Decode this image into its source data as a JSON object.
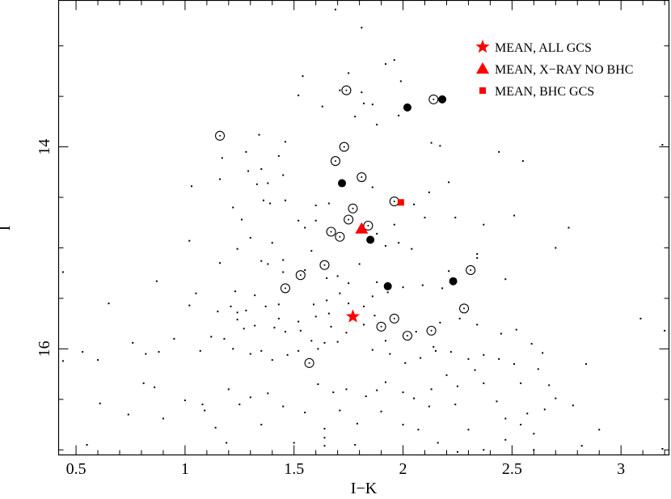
{
  "chart_data": {
    "type": "scatter",
    "xlabel": "I−K",
    "ylabel": "I",
    "xlim": [
      0.42,
      3.22
    ],
    "ylim": [
      17.05,
      12.55
    ],
    "y_inverted": true,
    "grid": false,
    "legend_position": "top-right",
    "x_ticks": [
      0.5,
      1,
      1.5,
      2,
      2.5,
      3
    ],
    "x_tick_labels": [
      "0.5",
      "1",
      "1.5",
      "2",
      "2.5",
      "3"
    ],
    "y_ticks": [
      14,
      16
    ],
    "y_tick_labels": [
      "14",
      "16"
    ],
    "colors": {
      "mean": "#ff0000",
      "points": "#000000"
    },
    "legend": [
      {
        "label": "MEAN, ALL GCS",
        "marker": "star"
      },
      {
        "label": "MEAN, X−RAY NO BHC",
        "marker": "triangle"
      },
      {
        "label": "MEAN, BHC GCS",
        "marker": "square"
      }
    ],
    "series": [
      {
        "name": "MEAN, ALL GCS",
        "marker": "star",
        "points": [
          [
            1.77,
            15.68
          ]
        ]
      },
      {
        "name": "MEAN, X−RAY NO BHC",
        "marker": "triangle",
        "points": [
          [
            1.81,
            14.81
          ]
        ]
      },
      {
        "name": "MEAN, BHC GCS",
        "marker": "square",
        "points": [
          [
            1.99,
            14.55
          ]
        ]
      },
      {
        "marker": "filled-circle",
        "points": [
          [
            2.02,
            13.61
          ],
          [
            2.18,
            13.53
          ],
          [
            1.72,
            14.36
          ],
          [
            1.85,
            14.92
          ],
          [
            1.93,
            15.38
          ],
          [
            2.23,
            15.33
          ]
        ]
      },
      {
        "marker": "circle-dot",
        "points": [
          [
            1.16,
            13.89
          ],
          [
            1.74,
            13.44
          ],
          [
            2.14,
            13.53
          ],
          [
            1.73,
            14.0
          ],
          [
            1.69,
            14.14
          ],
          [
            1.81,
            14.3
          ],
          [
            1.96,
            14.54
          ],
          [
            1.77,
            14.61
          ],
          [
            1.75,
            14.72
          ],
          [
            1.84,
            14.78
          ],
          [
            1.67,
            14.84
          ],
          [
            1.71,
            14.89
          ],
          [
            1.64,
            15.17
          ],
          [
            2.31,
            15.22
          ],
          [
            1.53,
            15.27
          ],
          [
            1.46,
            15.4
          ],
          [
            2.28,
            15.6
          ],
          [
            1.96,
            15.7
          ],
          [
            1.9,
            15.78
          ],
          [
            2.13,
            15.82
          ],
          [
            2.02,
            15.87
          ],
          [
            1.57,
            16.14
          ]
        ]
      },
      {
        "marker": "dot",
        "points": [
          [
            1.63,
            12.51
          ],
          [
            1.69,
            12.64
          ],
          [
            1.81,
            12.82
          ],
          [
            1.71,
            13.44
          ],
          [
            1.54,
            13.3
          ],
          [
            1.52,
            13.49
          ],
          [
            1.63,
            13.6
          ],
          [
            1.98,
            13.69
          ],
          [
            1.82,
            13.57
          ],
          [
            1.86,
            13.58
          ],
          [
            1.78,
            13.7
          ],
          [
            2.13,
            13.96
          ],
          [
            2.17,
            13.99
          ],
          [
            1.46,
            13.95
          ],
          [
            1.43,
            14.09
          ],
          [
            1.28,
            14.05
          ],
          [
            1.17,
            14.11
          ],
          [
            1.29,
            14.24
          ],
          [
            1.16,
            14.32
          ],
          [
            1.35,
            14.22
          ],
          [
            1.38,
            14.36
          ],
          [
            1.22,
            14.6
          ],
          [
            1.33,
            14.37
          ],
          [
            1.36,
            14.53
          ],
          [
            1.26,
            14.72
          ],
          [
            1.46,
            14.53
          ],
          [
            1.39,
            14.56
          ],
          [
            1.6,
            14.58
          ],
          [
            1.66,
            14.56
          ],
          [
            1.6,
            14.73
          ],
          [
            1.52,
            14.73
          ],
          [
            1.86,
            14.4
          ],
          [
            2.05,
            14.57
          ],
          [
            2.1,
            14.7
          ],
          [
            1.96,
            14.77
          ],
          [
            2.24,
            14.7
          ],
          [
            2.37,
            14.77
          ],
          [
            1.98,
            14.95
          ],
          [
            2.34,
            15.1
          ],
          [
            2.34,
            15.06
          ],
          [
            1.88,
            14.86
          ],
          [
            1.92,
            14.98
          ],
          [
            2.04,
            15.01
          ],
          [
            2.51,
            14.68
          ],
          [
            2.76,
            14.8
          ],
          [
            2.7,
            15.0
          ],
          [
            1.02,
            14.93
          ],
          [
            1.03,
            14.39
          ],
          [
            1.3,
            14.9
          ],
          [
            1.4,
            14.95
          ],
          [
            1.16,
            15.15
          ],
          [
            1.24,
            15.01
          ],
          [
            1.45,
            15.12
          ],
          [
            1.58,
            15.03
          ],
          [
            1.45,
            15.24
          ],
          [
            1.55,
            15.22
          ],
          [
            1.65,
            15.3
          ],
          [
            1.8,
            15.16
          ],
          [
            1.7,
            15.28
          ],
          [
            1.88,
            15.34
          ],
          [
            1.75,
            15.35
          ],
          [
            2.21,
            15.23
          ],
          [
            2.18,
            15.4
          ],
          [
            2.09,
            15.37
          ],
          [
            2.0,
            15.39
          ],
          [
            1.93,
            15.44
          ],
          [
            2.47,
            15.31
          ],
          [
            0.87,
            15.33
          ],
          [
            1.05,
            15.45
          ],
          [
            1.02,
            15.57
          ],
          [
            1.15,
            15.63
          ],
          [
            1.23,
            15.43
          ],
          [
            1.21,
            15.58
          ],
          [
            1.24,
            15.64
          ],
          [
            1.32,
            15.47
          ],
          [
            1.28,
            15.62
          ],
          [
            1.37,
            15.58
          ],
          [
            1.43,
            15.56
          ],
          [
            1.43,
            15.7
          ],
          [
            1.32,
            15.77
          ],
          [
            1.41,
            15.79
          ],
          [
            1.24,
            15.71
          ],
          [
            1.27,
            15.8
          ],
          [
            1.46,
            15.83
          ],
          [
            1.52,
            15.73
          ],
          [
            1.59,
            15.56
          ],
          [
            1.6,
            15.68
          ],
          [
            1.53,
            15.82
          ],
          [
            1.65,
            15.52
          ],
          [
            1.66,
            15.65
          ],
          [
            1.67,
            15.78
          ],
          [
            1.71,
            15.45
          ],
          [
            1.75,
            15.55
          ],
          [
            1.82,
            15.58
          ],
          [
            1.86,
            15.48
          ],
          [
            1.87,
            15.67
          ],
          [
            1.82,
            15.76
          ],
          [
            1.74,
            15.84
          ],
          [
            1.7,
            15.93
          ],
          [
            1.64,
            15.94
          ],
          [
            1.58,
            15.92
          ],
          [
            1.61,
            16.0
          ],
          [
            1.52,
            16.02
          ],
          [
            1.47,
            16.06
          ],
          [
            1.4,
            16.11
          ],
          [
            1.35,
            16.02
          ],
          [
            1.3,
            16.05
          ],
          [
            1.22,
            16.0
          ],
          [
            1.18,
            15.9
          ],
          [
            1.12,
            15.88
          ],
          [
            1.07,
            16.02
          ],
          [
            0.95,
            15.9
          ],
          [
            0.88,
            16.03
          ],
          [
            0.82,
            16.05
          ],
          [
            0.76,
            15.94
          ],
          [
            0.65,
            15.55
          ],
          [
            0.6,
            16.11
          ],
          [
            0.53,
            16.03
          ],
          [
            0.44,
            15.24
          ],
          [
            0.44,
            16.12
          ],
          [
            0.61,
            16.54
          ],
          [
            0.55,
            16.95
          ],
          [
            0.74,
            16.65
          ],
          [
            0.81,
            16.34
          ],
          [
            0.86,
            16.38
          ],
          [
            0.9,
            16.69
          ],
          [
            1.0,
            16.51
          ],
          [
            1.09,
            16.61
          ],
          [
            1.2,
            16.4
          ],
          [
            1.25,
            16.55
          ],
          [
            1.19,
            16.93
          ],
          [
            1.3,
            16.48
          ],
          [
            1.38,
            16.44
          ],
          [
            1.45,
            16.57
          ],
          [
            1.55,
            16.63
          ],
          [
            1.61,
            16.35
          ],
          [
            1.68,
            16.43
          ],
          [
            1.74,
            16.4
          ],
          [
            1.83,
            16.47
          ],
          [
            1.64,
            16.79
          ],
          [
            1.64,
            16.88
          ],
          [
            1.64,
            16.96
          ],
          [
            1.71,
            16.61
          ],
          [
            1.79,
            16.74
          ],
          [
            1.88,
            16.41
          ],
          [
            1.92,
            16.33
          ],
          [
            2.0,
            16.43
          ],
          [
            2.05,
            16.49
          ],
          [
            2.13,
            16.4
          ],
          [
            2.2,
            16.26
          ],
          [
            2.25,
            16.37
          ],
          [
            2.33,
            16.21
          ],
          [
            2.37,
            16.34
          ],
          [
            2.43,
            16.52
          ],
          [
            2.47,
            16.69
          ],
          [
            2.54,
            16.34
          ],
          [
            2.57,
            16.64
          ],
          [
            2.6,
            16.84
          ],
          [
            2.65,
            16.6
          ],
          [
            2.7,
            16.49
          ],
          [
            2.78,
            16.56
          ],
          [
            2.82,
            16.96
          ],
          [
            2.84,
            16.15
          ],
          [
            2.67,
            16.36
          ],
          [
            2.62,
            16.2
          ],
          [
            2.51,
            16.15
          ],
          [
            2.44,
            16.1
          ],
          [
            2.37,
            16.06
          ],
          [
            2.3,
            16.1
          ],
          [
            2.22,
            16.03
          ],
          [
            2.14,
            15.98
          ],
          [
            2.08,
            16.09
          ],
          [
            2.01,
            16.14
          ],
          [
            1.94,
            16.05
          ],
          [
            1.86,
            16.01
          ],
          [
            1.92,
            15.92
          ],
          [
            2.06,
            15.83
          ],
          [
            2.17,
            15.74
          ],
          [
            2.26,
            15.7
          ],
          [
            2.34,
            15.76
          ],
          [
            2.45,
            15.85
          ],
          [
            2.52,
            15.81
          ],
          [
            2.59,
            15.95
          ],
          [
            2.64,
            16.04
          ],
          [
            2.24,
            16.55
          ],
          [
            2.3,
            16.8
          ],
          [
            2.37,
            17.0
          ],
          [
            2.47,
            16.9
          ],
          [
            2.54,
            16.75
          ],
          [
            2.12,
            16.57
          ],
          [
            2.07,
            16.8
          ],
          [
            2.16,
            16.93
          ],
          [
            2.0,
            16.75
          ],
          [
            1.9,
            16.62
          ],
          [
            1.78,
            16.95
          ],
          [
            1.5,
            16.93
          ],
          [
            1.35,
            16.75
          ],
          [
            1.14,
            16.78
          ],
          [
            1.08,
            16.55
          ],
          [
            2.9,
            16.8
          ],
          [
            3.09,
            17.19
          ],
          [
            3.12,
            17.16
          ],
          [
            3.19,
            16.99
          ],
          [
            3.09,
            15.7
          ],
          [
            3.19,
            13.98
          ],
          [
            3.2,
            15.82
          ],
          [
            2.55,
            14.14
          ],
          [
            2.6,
            17.0
          ],
          [
            2.25,
            17.02
          ],
          [
            2.15,
            16.02
          ],
          [
            1.55,
            14.8
          ],
          [
            1.38,
            15.16
          ],
          [
            1.99,
            13.35
          ],
          [
            1.96,
            13.14
          ],
          [
            2.12,
            14.45
          ],
          [
            2.21,
            14.35
          ],
          [
            2.44,
            14.05
          ],
          [
            1.92,
            13.18
          ],
          [
            1.34,
            13.88
          ],
          [
            1.75,
            13.27
          ],
          [
            1.81,
            13.46
          ],
          [
            1.88,
            13.78
          ],
          [
            1.45,
            14.28
          ],
          [
            1.35,
            15.13
          ]
        ]
      }
    ]
  }
}
